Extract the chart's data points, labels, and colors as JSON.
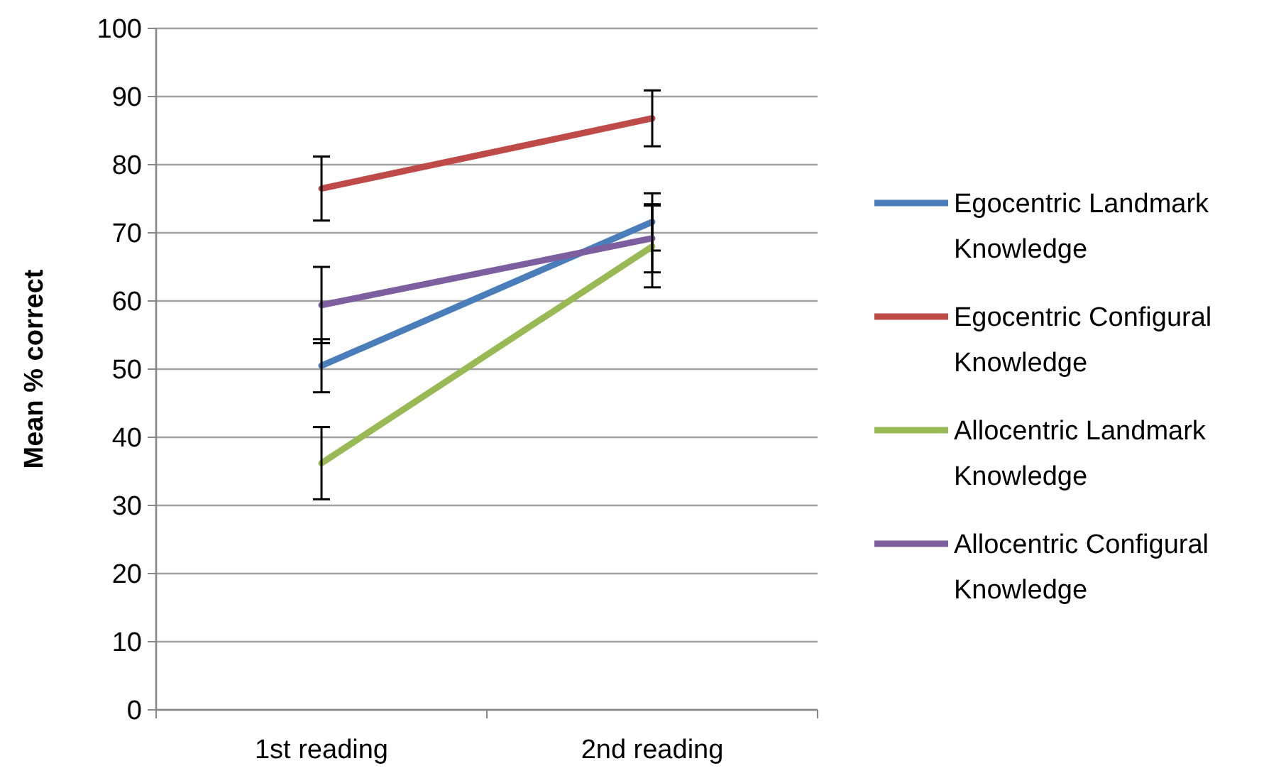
{
  "chart_data": {
    "type": "line",
    "ylabel": "Mean % correct",
    "categories": [
      "1st reading",
      "2nd reading"
    ],
    "ylim": [
      0,
      100
    ],
    "yticks": [
      0,
      10,
      20,
      30,
      40,
      50,
      60,
      70,
      80,
      90,
      100
    ],
    "grid": "y",
    "legend": "right",
    "marker": "none",
    "line_style": "solid",
    "series": [
      {
        "name": "Egocentric Landmark Knowledge",
        "color": "#4a7ebb",
        "values": [
          50.5,
          71.6
        ],
        "errors": [
          3.9,
          4.2
        ]
      },
      {
        "name": "Egocentric Configural Knowledge",
        "color": "#be4b48",
        "values": [
          76.5,
          86.8
        ],
        "errors": [
          4.7,
          4.1
        ]
      },
      {
        "name": "Allocentric Landmark Knowledge",
        "color": "#98b954",
        "values": [
          36.2,
          68
        ],
        "errors": [
          5.3,
          6
        ]
      },
      {
        "name": "Allocentric Configural Knowledge",
        "color": "#7d5fa0",
        "values": [
          59.4,
          69.2
        ],
        "errors": [
          5.6,
          5
        ]
      }
    ]
  }
}
